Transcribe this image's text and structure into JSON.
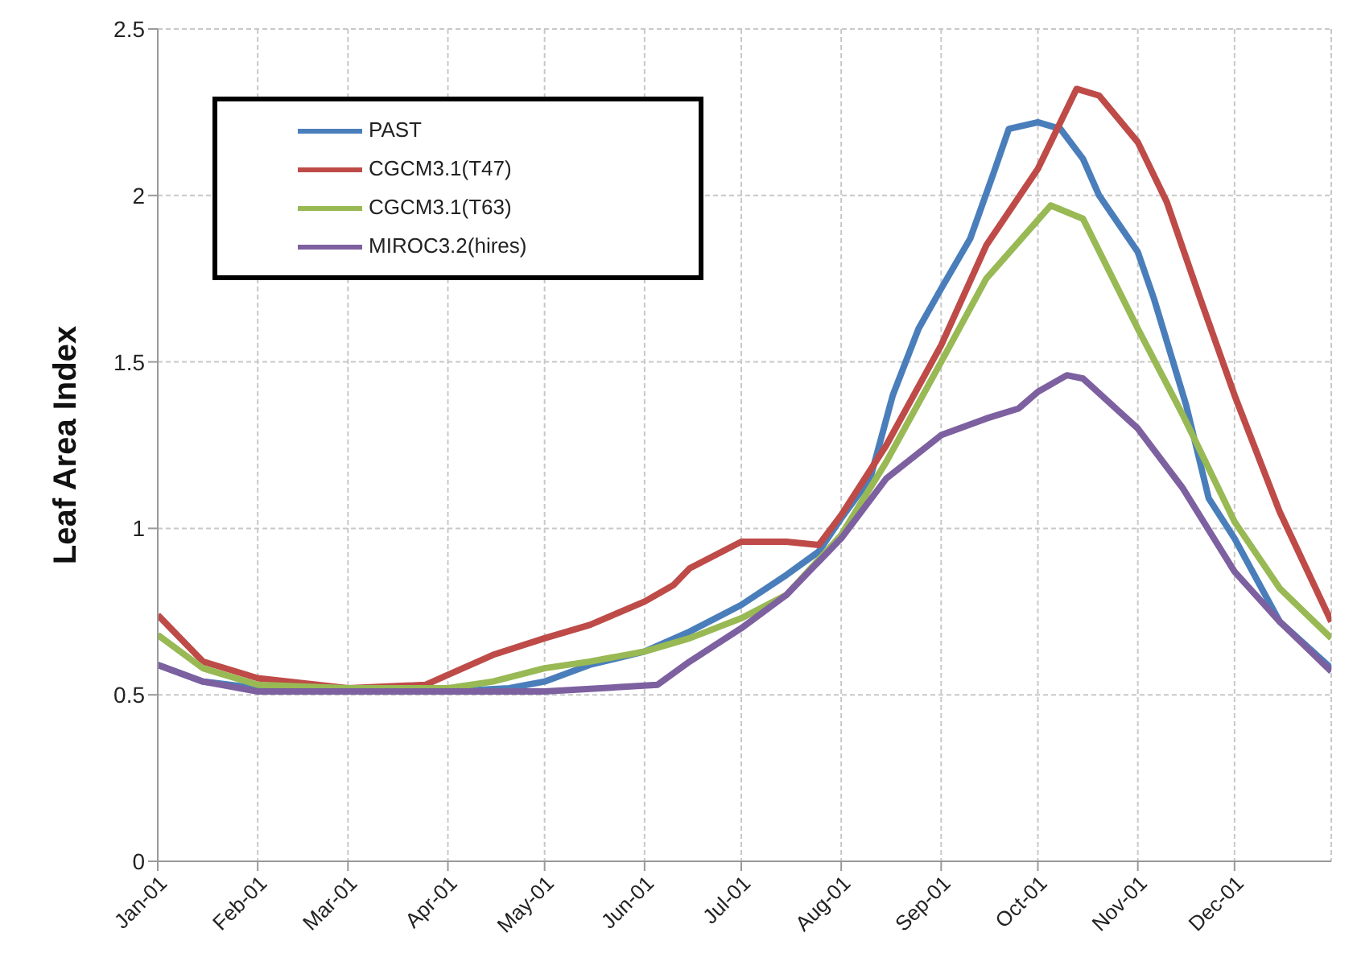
{
  "chart_data": {
    "type": "line",
    "ylabel": "Leaf Area Index",
    "xlim": [
      "--01-01",
      "--12-31"
    ],
    "xticks": [
      {
        "value": "--01-01",
        "label": "Jan-01"
      },
      {
        "value": "--02-01",
        "label": "Feb-01"
      },
      {
        "value": "--03-01",
        "label": "Mar-01"
      },
      {
        "value": "--04-01",
        "label": "Apr-01"
      },
      {
        "value": "--05-01",
        "label": "May-01"
      },
      {
        "value": "--06-01",
        "label": "Jun-01"
      },
      {
        "value": "--07-01",
        "label": "Jul-01"
      },
      {
        "value": "--08-01",
        "label": "Aug-01"
      },
      {
        "value": "--09-01",
        "label": "Sep-01"
      },
      {
        "value": "--10-01",
        "label": "Oct-01"
      },
      {
        "value": "--11-01",
        "label": "Nov-01"
      },
      {
        "value": "--12-01",
        "label": "Dec-01"
      }
    ],
    "ylim": [
      0,
      2.5
    ],
    "yticks": [
      0,
      0.5,
      1,
      1.5,
      2,
      2.5
    ],
    "grid": true,
    "legend": "top left",
    "marker": "none",
    "line_style": "solid",
    "series": [
      {
        "name": "PAST",
        "color": "#4a7ebb",
        "x": [
          "--01-01",
          "--01-15",
          "--02-01",
          "--03-01",
          "--04-01",
          "--04-20",
          "--05-01",
          "--05-15",
          "--06-01",
          "--06-15",
          "--07-01",
          "--07-15",
          "--07-25",
          "--08-01",
          "--08-10",
          "--08-17",
          "--08-25",
          "--09-01",
          "--09-10",
          "--09-17",
          "--09-22",
          "--10-01",
          "--10-08",
          "--10-15",
          "--10-20",
          "--11-01",
          "--11-06",
          "--11-16",
          "--11-23",
          "--12-01",
          "--12-15",
          "--12-31"
        ],
        "values": [
          0.59,
          0.54,
          0.52,
          0.51,
          0.51,
          0.52,
          0.54,
          0.59,
          0.63,
          0.69,
          0.77,
          0.86,
          0.93,
          1.03,
          1.15,
          1.4,
          1.6,
          1.72,
          1.87,
          2.06,
          2.2,
          2.22,
          2.2,
          2.11,
          2.0,
          1.83,
          1.69,
          1.37,
          1.09,
          0.97,
          0.72,
          0.58
        ]
      },
      {
        "name": "CGCM3.1(T47)",
        "color": "#be4b48",
        "x": [
          "--01-01",
          "--01-15",
          "--02-01",
          "--03-01",
          "--03-25",
          "--04-01",
          "--04-15",
          "--05-01",
          "--05-15",
          "--06-01",
          "--06-10",
          "--06-15",
          "--07-01",
          "--07-15",
          "--07-25",
          "--08-01",
          "--08-15",
          "--09-01",
          "--09-15",
          "--10-01",
          "--10-13",
          "--10-20",
          "--11-01",
          "--11-10",
          "--11-20",
          "--12-01",
          "--12-15",
          "--12-31"
        ],
        "values": [
          0.74,
          0.6,
          0.55,
          0.52,
          0.53,
          0.56,
          0.62,
          0.67,
          0.71,
          0.78,
          0.83,
          0.88,
          0.96,
          0.96,
          0.95,
          1.04,
          1.25,
          1.55,
          1.85,
          2.08,
          2.32,
          2.3,
          2.16,
          1.98,
          1.7,
          1.4,
          1.05,
          0.72
        ]
      },
      {
        "name": "CGCM3.1(T63)",
        "color": "#98b954",
        "x": [
          "--01-01",
          "--01-15",
          "--02-01",
          "--03-01",
          "--04-01",
          "--04-15",
          "--05-01",
          "--05-15",
          "--06-01",
          "--06-15",
          "--07-01",
          "--07-15",
          "--08-01",
          "--08-15",
          "--09-01",
          "--09-15",
          "--10-05",
          "--10-15",
          "--11-01",
          "--11-15",
          "--12-01",
          "--12-15",
          "--12-31"
        ],
        "values": [
          0.68,
          0.58,
          0.53,
          0.52,
          0.52,
          0.54,
          0.58,
          0.6,
          0.63,
          0.67,
          0.73,
          0.8,
          0.98,
          1.2,
          1.5,
          1.75,
          1.97,
          1.93,
          1.6,
          1.34,
          1.02,
          0.82,
          0.67
        ]
      },
      {
        "name": "MIROC3.2(hires)",
        "color": "#7d60a0",
        "x": [
          "--01-01",
          "--01-15",
          "--02-01",
          "--03-01",
          "--04-01",
          "--05-01",
          "--06-05",
          "--06-15",
          "--07-01",
          "--07-15",
          "--08-01",
          "--08-15",
          "--09-01",
          "--09-15",
          "--09-25",
          "--10-01",
          "--10-10",
          "--10-15",
          "--11-01",
          "--11-15",
          "--12-01",
          "--12-15",
          "--12-31"
        ],
        "values": [
          0.59,
          0.54,
          0.51,
          0.51,
          0.51,
          0.51,
          0.53,
          0.6,
          0.7,
          0.8,
          0.97,
          1.15,
          1.28,
          1.33,
          1.36,
          1.41,
          1.46,
          1.45,
          1.3,
          1.12,
          0.87,
          0.72,
          0.57
        ]
      }
    ]
  }
}
